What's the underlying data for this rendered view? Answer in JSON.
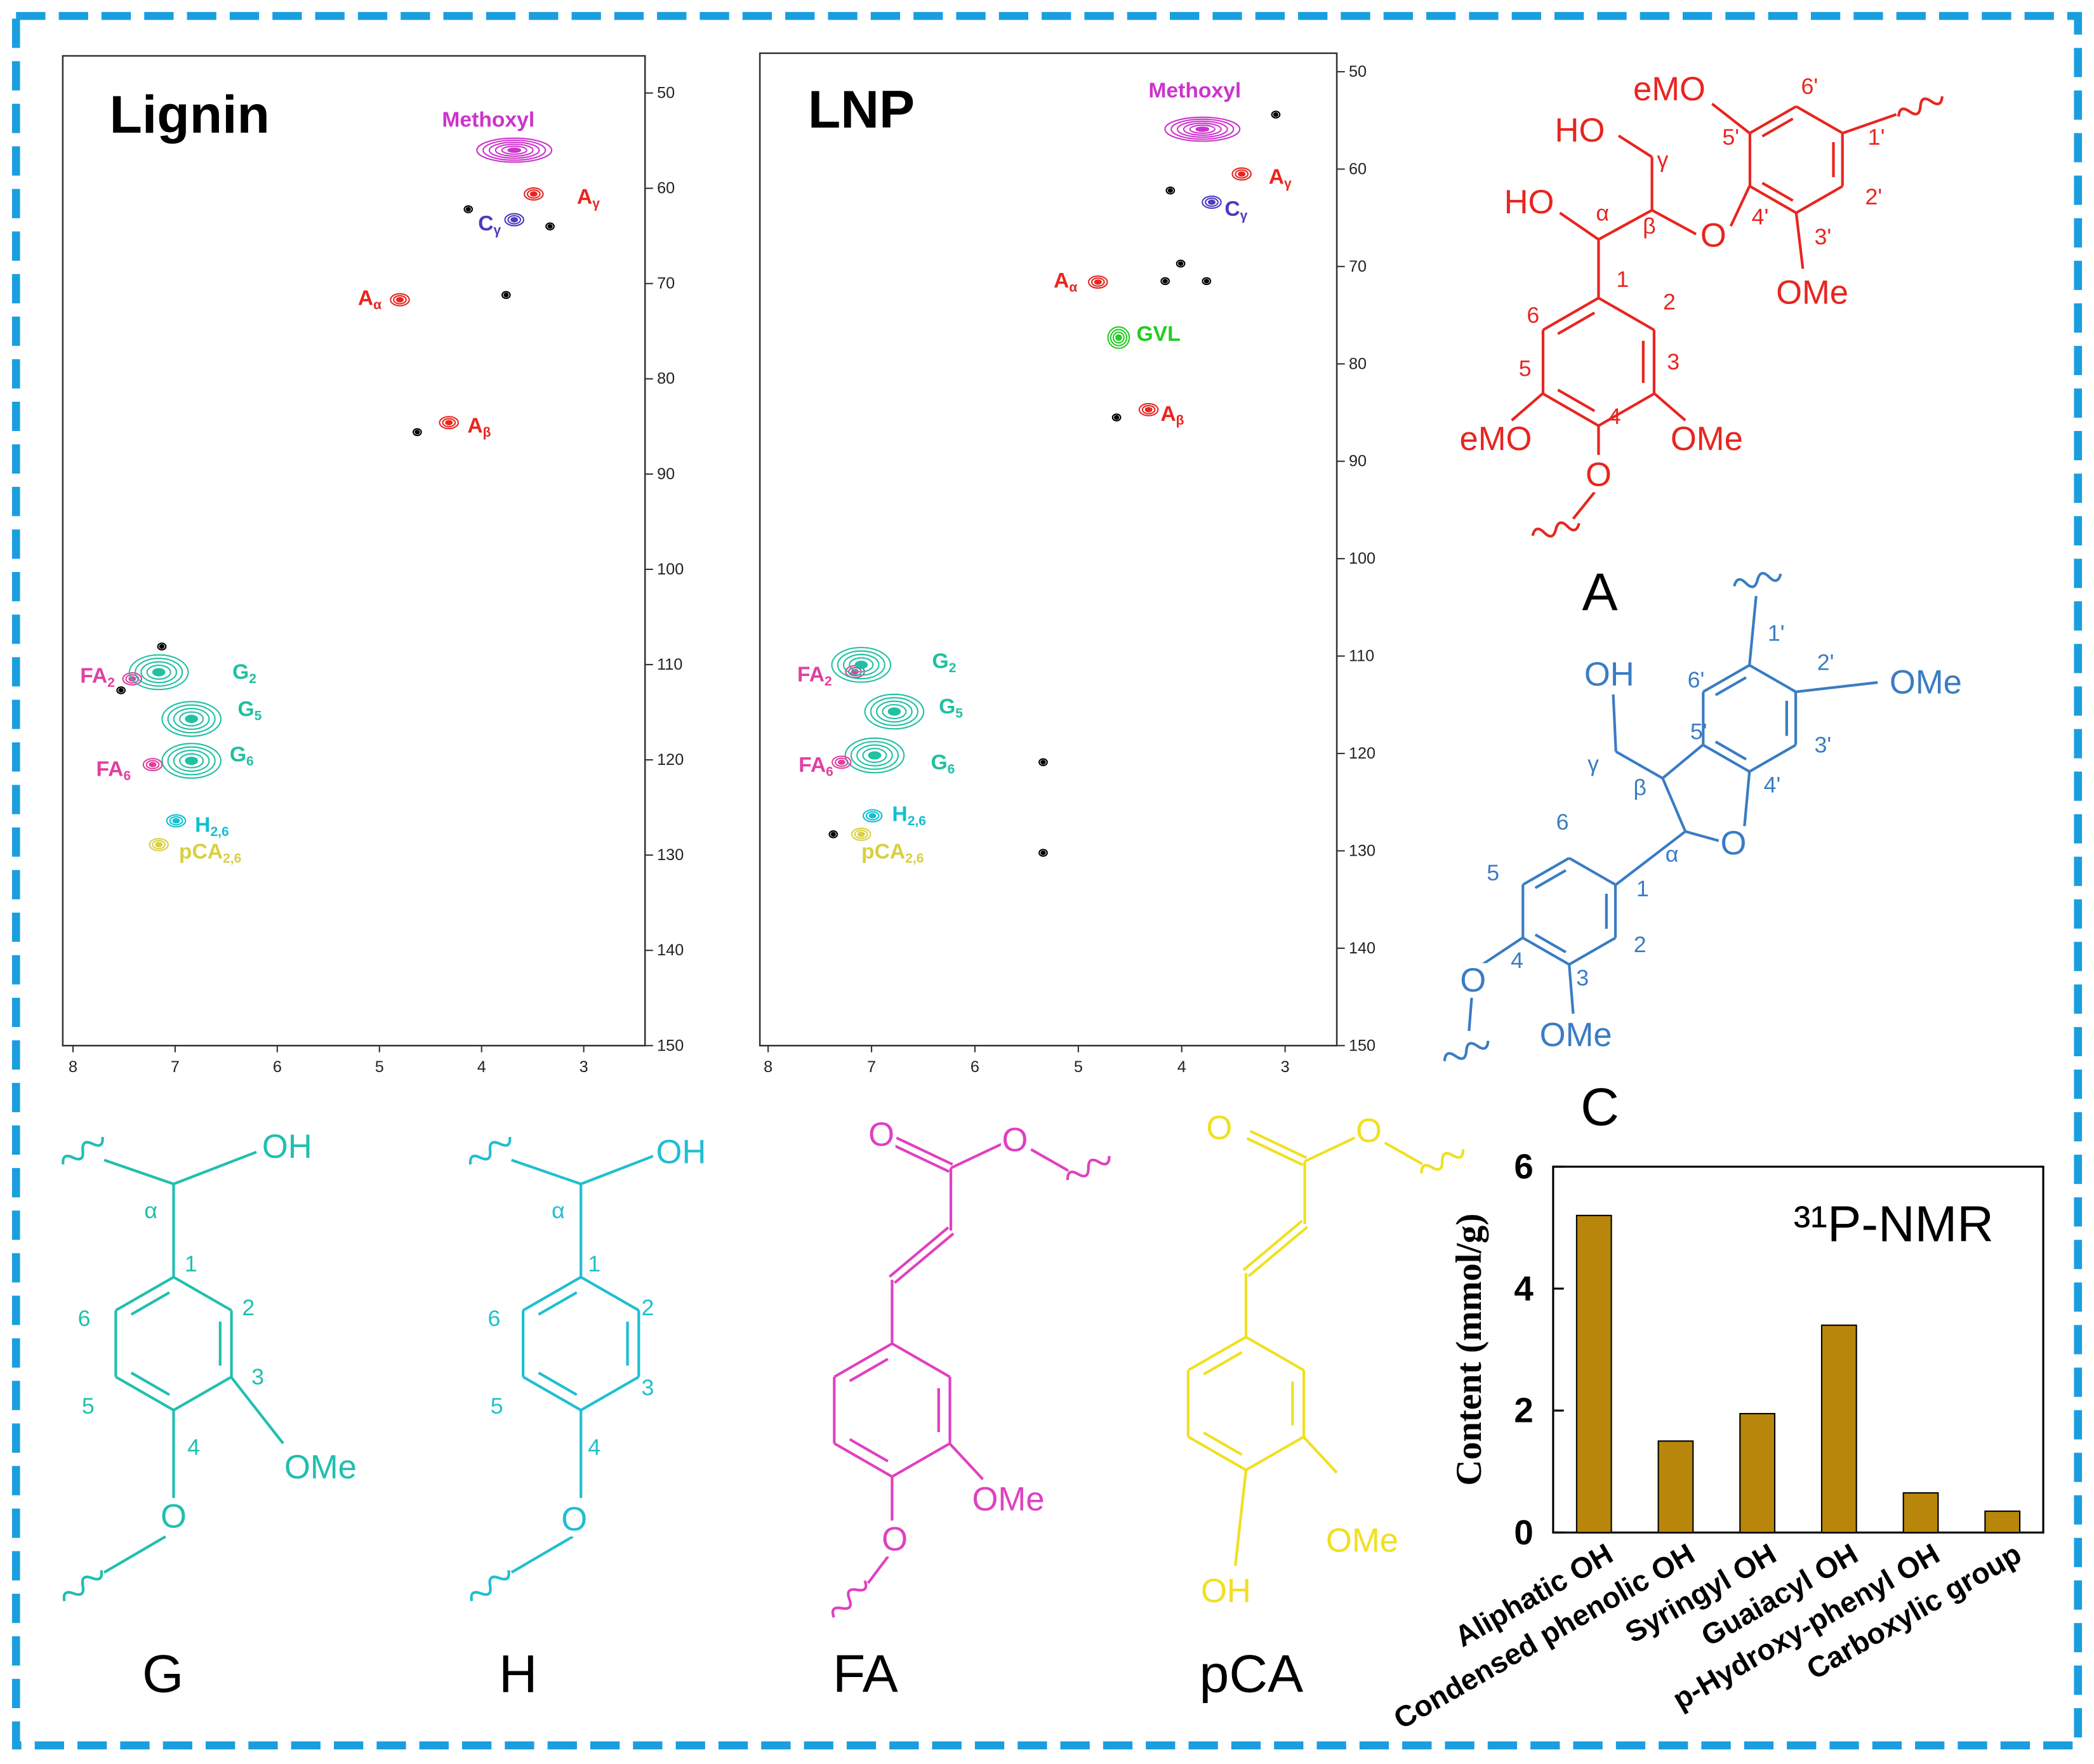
{
  "chart_data": [
    {
      "type": "nmr",
      "title": "Lignin",
      "xlim": [
        8.1,
        2.4
      ],
      "ylim": [
        46.1,
        150
      ],
      "xticks": [
        8,
        7,
        6,
        5,
        4,
        3
      ],
      "yticks": [
        50,
        60,
        70,
        80,
        90,
        100,
        110,
        120,
        130,
        140,
        150
      ],
      "peaks": [
        {
          "label": "Methoxyl",
          "x": 3.68,
          "y": 56.0,
          "color": "#cc33cc"
        },
        {
          "label": "A",
          "subscript": "γ",
          "x": 3.49,
          "y": 60.6,
          "color": "#e8251f"
        },
        {
          "label": "C",
          "subscript": "γ",
          "x": 3.68,
          "y": 63.3,
          "color": "#4a3cc0"
        },
        {
          "label": "A",
          "subscript": "α",
          "x": 4.8,
          "y": 71.7,
          "color": "#e8251f"
        },
        {
          "label": "A",
          "subscript": "β",
          "x": 4.32,
          "y": 84.6,
          "color": "#e8251f"
        },
        {
          "label": "FA",
          "subscript": "2",
          "x": 7.42,
          "y": 111.5,
          "color": "#e040a0"
        },
        {
          "label": "G",
          "subscript": "2",
          "x": 7.16,
          "y": 110.8,
          "color": "#20c0a0"
        },
        {
          "label": "G",
          "subscript": "5",
          "x": 6.84,
          "y": 115.7,
          "color": "#20c0a0"
        },
        {
          "label": "G",
          "subscript": "6",
          "x": 6.84,
          "y": 120.1,
          "color": "#20c0a0"
        },
        {
          "label": "FA",
          "subscript": "6",
          "x": 7.22,
          "y": 120.5,
          "color": "#e040a0"
        },
        {
          "label": "H",
          "subscript": "2,6",
          "x": 6.99,
          "y": 126.4,
          "color": "#10c0d0"
        },
        {
          "label": "pCA",
          "subscript": "2,6",
          "x": 7.16,
          "y": 128.9,
          "color": "#d8d040"
        },
        {
          "x": 4.13,
          "y": 62.2,
          "color": "#000000"
        },
        {
          "x": 3.33,
          "y": 64.0,
          "color": "#000000"
        },
        {
          "x": 3.76,
          "y": 71.2,
          "color": "#000000"
        },
        {
          "x": 4.63,
          "y": 85.6,
          "color": "#000000"
        },
        {
          "x": 7.13,
          "y": 108.1,
          "color": "#000000"
        },
        {
          "x": 7.53,
          "y": 112.7,
          "color": "#000000"
        }
      ]
    },
    {
      "type": "nmr",
      "title": "LNP",
      "xlim": [
        8.08,
        2.5
      ],
      "ylim": [
        48.1,
        150
      ],
      "xticks": [
        8,
        7,
        6,
        5,
        4,
        3
      ],
      "yticks": [
        50,
        60,
        70,
        80,
        90,
        100,
        110,
        120,
        130,
        140,
        150
      ],
      "peaks": [
        {
          "label": "Methoxyl",
          "x": 3.8,
          "y": 55.9,
          "color": "#cc33cc"
        },
        {
          "label": "A",
          "subscript": "γ",
          "x": 3.42,
          "y": 60.5,
          "color": "#e8251f"
        },
        {
          "label": "C",
          "subscript": "γ",
          "x": 3.71,
          "y": 63.4,
          "color": "#4a3cc0"
        },
        {
          "label": "A",
          "subscript": "α",
          "x": 4.81,
          "y": 71.6,
          "color": "#e8251f"
        },
        {
          "label": "GVL",
          "x": 4.61,
          "y": 77.3,
          "color": "#22cc22"
        },
        {
          "label": "A",
          "subscript": "β",
          "x": 4.32,
          "y": 84.7,
          "color": "#e8251f"
        },
        {
          "label": "FA",
          "subscript": "2",
          "x": 7.16,
          "y": 111.6,
          "color": "#e040a0"
        },
        {
          "label": "G",
          "subscript": "2",
          "x": 7.1,
          "y": 110.9,
          "color": "#20c0a0"
        },
        {
          "label": "G",
          "subscript": "5",
          "x": 6.78,
          "y": 115.7,
          "color": "#20c0a0"
        },
        {
          "label": "G",
          "subscript": "6",
          "x": 6.97,
          "y": 120.2,
          "color": "#20c0a0"
        },
        {
          "label": "FA",
          "subscript": "6",
          "x": 7.29,
          "y": 120.9,
          "color": "#e040a0"
        },
        {
          "label": "H",
          "subscript": "2,6",
          "x": 6.99,
          "y": 126.4,
          "color": "#10c0d0"
        },
        {
          "label": "pCA",
          "subscript": "2,6",
          "x": 7.1,
          "y": 128.3,
          "color": "#d8d040"
        },
        {
          "x": 3.09,
          "y": 54.4,
          "color": "#000000"
        },
        {
          "x": 4.11,
          "y": 62.2,
          "color": "#000000"
        },
        {
          "x": 4.01,
          "y": 69.7,
          "color": "#000000"
        },
        {
          "x": 4.16,
          "y": 71.5,
          "color": "#000000"
        },
        {
          "x": 3.76,
          "y": 71.5,
          "color": "#000000"
        },
        {
          "x": 4.63,
          "y": 85.5,
          "color": "#000000"
        },
        {
          "x": 5.34,
          "y": 120.9,
          "color": "#000000"
        },
        {
          "x": 5.34,
          "y": 130.2,
          "color": "#000000"
        },
        {
          "x": 7.37,
          "y": 128.3,
          "color": "#000000"
        }
      ]
    },
    {
      "type": "bar",
      "annotation": "³¹P-NMR",
      "ylabel": "Content (mmol/g)",
      "categories": [
        "Aliphatic OH",
        "Condensed phenolic OH",
        "Syringyl OH",
        "Guaiacyl OH",
        "p-Hydroxy-phenyl OH",
        "Carboxylic group"
      ],
      "values": [
        5.2,
        1.5,
        1.95,
        3.4,
        0.65,
        0.35
      ],
      "color": "#b8860b",
      "ylim": [
        0,
        6
      ],
      "yticks": [
        0,
        2,
        4,
        6
      ]
    }
  ],
  "structures": [
    {
      "title": "A",
      "color": "#e8251f",
      "atoms": [
        "eMO",
        "6'",
        "HO",
        "γ",
        "5'",
        "1'",
        "HO",
        "α",
        "β",
        "O",
        "4'",
        "2'",
        "3'",
        "OMe",
        "1",
        "2",
        "6",
        "5",
        "3",
        "4",
        "eMO",
        "OMe",
        "O"
      ]
    },
    {
      "title": "C",
      "color": "#3a7cc4",
      "atoms": [
        "OH",
        "1'",
        "6'",
        "2'",
        "OMe",
        "5'",
        "3'",
        "γ",
        "β",
        "4'",
        "6",
        "α",
        "O",
        "5",
        "1",
        "2",
        "O",
        "4",
        "3",
        "OMe"
      ]
    },
    {
      "title": "G",
      "color": "#1fbfb0",
      "atoms": [
        "OH",
        "α",
        "1",
        "2",
        "6",
        "3",
        "5",
        "4",
        "OMe",
        "O"
      ]
    },
    {
      "title": "H",
      "color": "#1fbfcf",
      "atoms": [
        "OH",
        "α",
        "1",
        "2",
        "6",
        "3",
        "5",
        "4",
        "O"
      ]
    },
    {
      "title": "FA",
      "color": "#e040c0",
      "atoms": [
        "O",
        "O",
        "OMe",
        "O"
      ]
    },
    {
      "title": "pCA",
      "color": "#f0e020",
      "atoms": [
        "O",
        "O",
        "OMe",
        "OH"
      ]
    }
  ]
}
